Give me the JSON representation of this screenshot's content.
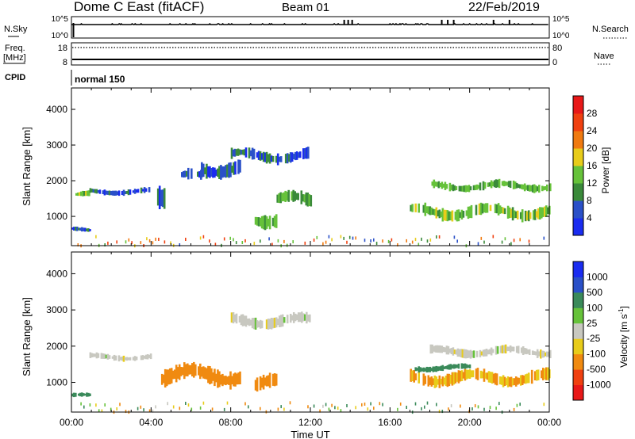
{
  "header": {
    "title": "Dome C East (fitACF)",
    "beam": "Beam 01",
    "date": "22/Feb/2019"
  },
  "top_panels": {
    "nsky": {
      "left_label": "N.Sky",
      "right_label": "N.Search",
      "left_ticks": [
        "10^5",
        "10^0"
      ],
      "right_ticks": [
        "10^5",
        "10^0"
      ]
    },
    "freq": {
      "left_label_1": "Freq.",
      "left_label_2": "[MHz]",
      "right_label": "Nave",
      "left_ticks": [
        "18",
        "8"
      ],
      "right_ticks": [
        "80",
        "0"
      ]
    },
    "cpid": {
      "label": "CPID",
      "value": "normal 150"
    }
  },
  "power_colorbar": {
    "label": "Power [dB]",
    "ticks": [
      "4",
      "8",
      "12",
      "16",
      "20",
      "24",
      "28"
    ],
    "colors": [
      "#1a2cf0",
      "#2a50c8",
      "#3a8a3a",
      "#66c23a",
      "#e8cc1a",
      "#f07a10",
      "#f04010",
      "#e81818"
    ]
  },
  "velocity_colorbar": {
    "label": "Velocity [m s",
    "label_sup": "-1",
    "label_end": "]",
    "ticks": [
      "-1000",
      "-500",
      "-100",
      "-25",
      "25",
      "100",
      "500",
      "1000"
    ],
    "colors": [
      "#e81818",
      "#f04010",
      "#f08a10",
      "#e8cc1a",
      "#c8c8c0",
      "#66c23a",
      "#3a8a5a",
      "#2a50c8",
      "#1a2cf0"
    ]
  },
  "chart_data": [
    {
      "type": "heatmap",
      "title": "",
      "xlabel": "",
      "ylabel": "Slant Range [km]",
      "yticks": [
        1000,
        2000,
        3000,
        4000
      ],
      "ylim": [
        180,
        4600
      ],
      "xlim_hours": [
        0,
        24
      ],
      "colorbar_label": "Power [dB]",
      "echo_regions": [
        {
          "t": [
            0.2,
            0.9
          ],
          "r": [
            1500,
            1700
          ],
          "value_db": 14
        },
        {
          "t": [
            0.9,
            4.0
          ],
          "r": [
            1600,
            1800
          ],
          "value_db": 6
        },
        {
          "t": [
            0.0,
            0.9
          ],
          "r": [
            550,
            700
          ],
          "value_db": 6
        },
        {
          "t": [
            4.3,
            4.7
          ],
          "r": [
            1300,
            2100
          ],
          "value_db": 6
        },
        {
          "t": [
            5.5,
            6.5
          ],
          "r": [
            1900,
            2300
          ],
          "value_db": 6
        },
        {
          "t": [
            6.5,
            8.5
          ],
          "r": [
            2100,
            2600
          ],
          "value_db": 6
        },
        {
          "t": [
            8.0,
            12.0
          ],
          "r": [
            2500,
            2900
          ],
          "value_db": 6
        },
        {
          "t": [
            9.2,
            10.3
          ],
          "r": [
            700,
            1200
          ],
          "value_db": 12
        },
        {
          "t": [
            10.3,
            12.0
          ],
          "r": [
            1200,
            1700
          ],
          "value_db": 12
        },
        {
          "t": [
            18.0,
            24.0
          ],
          "r": [
            1700,
            2000
          ],
          "value_db": 12
        },
        {
          "t": [
            17.0,
            24.0
          ],
          "r": [
            900,
            1350
          ],
          "value_db": 14
        }
      ]
    },
    {
      "type": "heatmap",
      "title": "",
      "xlabel": "Time UT",
      "ylabel": "Slant Range [km]",
      "xticks": [
        "00:00",
        "04:00",
        "08:00",
        "12:00",
        "16:00",
        "20:00",
        "00:00"
      ],
      "yticks": [
        1000,
        2000,
        3000,
        4000
      ],
      "ylim": [
        180,
        4600
      ],
      "xlim_hours": [
        0,
        24
      ],
      "colorbar_label": "Velocity [m s-1]",
      "echo_regions": [
        {
          "t": [
            0.9,
            4.0
          ],
          "r": [
            1600,
            1800
          ],
          "velocity": 0
        },
        {
          "t": [
            8.0,
            12.0
          ],
          "r": [
            2500,
            2900
          ],
          "velocity": 0
        },
        {
          "t": [
            18.0,
            24.0
          ],
          "r": [
            1700,
            2000
          ],
          "velocity": 0
        },
        {
          "t": [
            9.2,
            10.3
          ],
          "r": [
            700,
            1200
          ],
          "velocity": -200
        },
        {
          "t": [
            4.5,
            8.5
          ],
          "r": [
            900,
            1500
          ],
          "velocity": -200
        },
        {
          "t": [
            17.0,
            24.0
          ],
          "r": [
            900,
            1350
          ],
          "velocity": -100
        },
        {
          "t": [
            17.0,
            20.0
          ],
          "r": [
            1300,
            1500
          ],
          "velocity": 300
        },
        {
          "t": [
            0.0,
            0.9
          ],
          "r": [
            550,
            700
          ],
          "velocity": 300
        }
      ]
    }
  ]
}
